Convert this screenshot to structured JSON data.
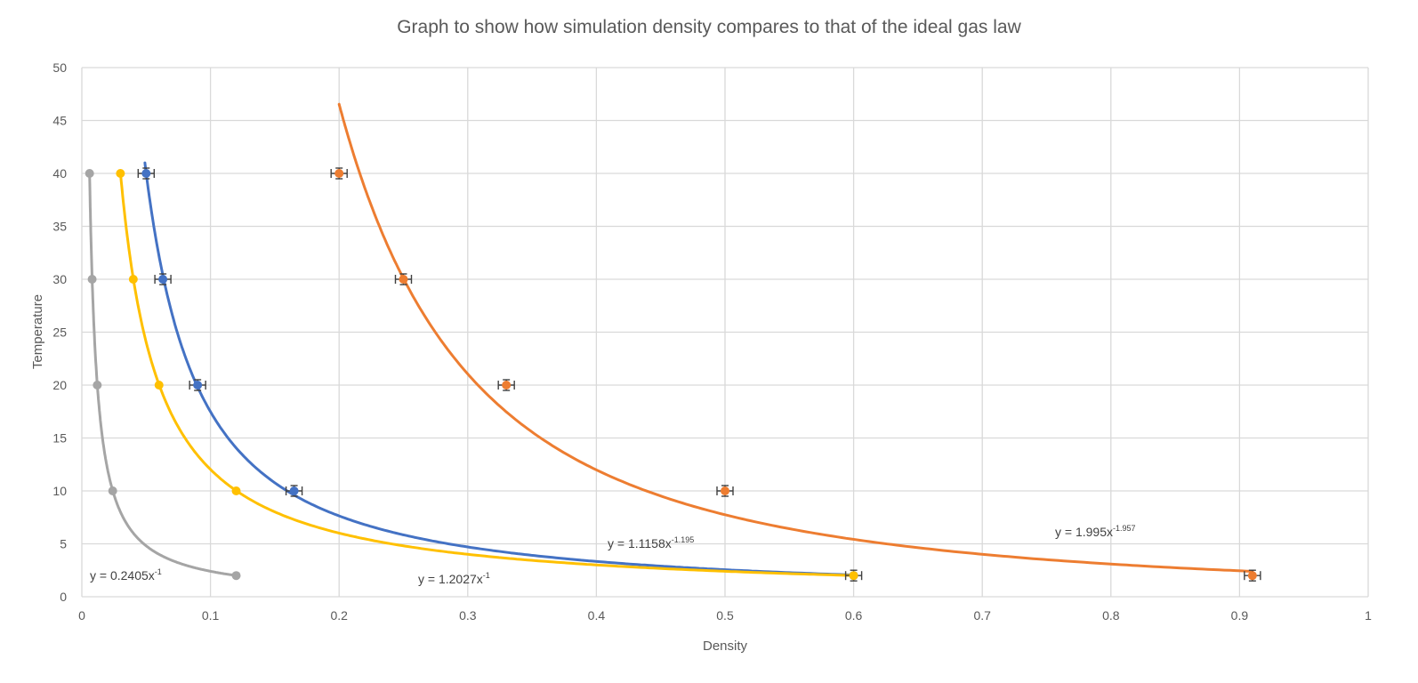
{
  "chart_data": {
    "type": "scatter",
    "title": "Graph to show how simulation density compares to that of the ideal gas law",
    "xlabel": "Density",
    "ylabel": "Temperature",
    "xlim": [
      0,
      1
    ],
    "ylim": [
      0,
      50
    ],
    "x_ticks": [
      "0",
      "0.1",
      "0.2",
      "0.3",
      "0.4",
      "0.5",
      "0.6",
      "0.7",
      "0.8",
      "0.9",
      "1"
    ],
    "y_ticks": [
      "0",
      "5",
      "10",
      "15",
      "20",
      "25",
      "30",
      "35",
      "40",
      "45",
      "50"
    ],
    "grid": true,
    "series": [
      {
        "name": "orange",
        "color": "#ED7D31",
        "x": [
          0.2,
          0.25,
          0.33,
          0.5,
          0.91
        ],
        "y": [
          40,
          30,
          20,
          10,
          2
        ],
        "trend": {
          "a": 1.995,
          "b": -1.957,
          "x_from": 0.2,
          "x_to": 0.91
        },
        "error_bars": true,
        "equation_prefix": "y = 1.995x",
        "equation_exp": "-1.957"
      },
      {
        "name": "blue",
        "color": "#4472C4",
        "x": [
          0.05,
          0.063,
          0.09,
          0.165,
          0.6
        ],
        "y": [
          40,
          30,
          20,
          10,
          2
        ],
        "trend": {
          "a": 1.1158,
          "b": -1.195,
          "x_from": 0.049,
          "x_to": 0.6
        },
        "error_bars": true,
        "equation_prefix": "y = 1.1158x",
        "equation_exp": "-1.195"
      },
      {
        "name": "yellow",
        "color": "#FFC000",
        "x": [
          0.03,
          0.04,
          0.06,
          0.12,
          0.6
        ],
        "y": [
          40,
          30,
          20,
          10,
          2
        ],
        "trend": {
          "a": 1.2027,
          "b": -1,
          "x_from": 0.03,
          "x_to": 0.6
        },
        "error_bars": false,
        "equation_prefix": "y = 1.2027x",
        "equation_exp": "-1"
      },
      {
        "name": "gray",
        "color": "#A5A5A5",
        "x": [
          0.006,
          0.008,
          0.012,
          0.024,
          0.12
        ],
        "y": [
          40,
          30,
          20,
          10,
          2
        ],
        "trend": {
          "a": 0.2405,
          "b": -1,
          "x_from": 0.006,
          "x_to": 0.12
        },
        "error_bars": false,
        "equation_prefix": "y = 0.2405x",
        "equation_exp": "-1"
      }
    ]
  }
}
